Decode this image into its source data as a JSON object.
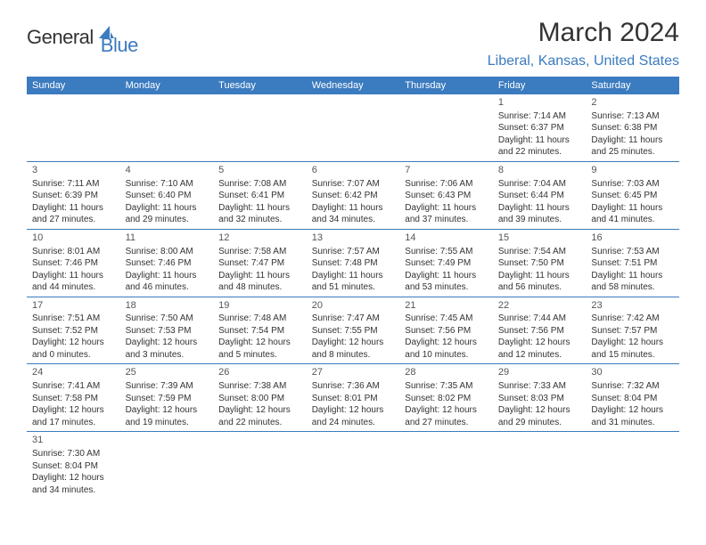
{
  "logo": {
    "text_general": "General",
    "text_blue": "Blue",
    "icon_color": "#3b7bbf"
  },
  "title": "March 2024",
  "location": "Liberal, Kansas, United States",
  "colors": {
    "header_bg": "#3b7bbf",
    "header_text": "#ffffff",
    "accent": "#3b7bbf",
    "body_text": "#333333",
    "background": "#ffffff"
  },
  "day_headers": [
    "Sunday",
    "Monday",
    "Tuesday",
    "Wednesday",
    "Thursday",
    "Friday",
    "Saturday"
  ],
  "weeks": [
    [
      null,
      null,
      null,
      null,
      null,
      {
        "n": "1",
        "sunrise": "Sunrise: 7:14 AM",
        "sunset": "Sunset: 6:37 PM",
        "daylight1": "Daylight: 11 hours",
        "daylight2": "and 22 minutes."
      },
      {
        "n": "2",
        "sunrise": "Sunrise: 7:13 AM",
        "sunset": "Sunset: 6:38 PM",
        "daylight1": "Daylight: 11 hours",
        "daylight2": "and 25 minutes."
      }
    ],
    [
      {
        "n": "3",
        "sunrise": "Sunrise: 7:11 AM",
        "sunset": "Sunset: 6:39 PM",
        "daylight1": "Daylight: 11 hours",
        "daylight2": "and 27 minutes."
      },
      {
        "n": "4",
        "sunrise": "Sunrise: 7:10 AM",
        "sunset": "Sunset: 6:40 PM",
        "daylight1": "Daylight: 11 hours",
        "daylight2": "and 29 minutes."
      },
      {
        "n": "5",
        "sunrise": "Sunrise: 7:08 AM",
        "sunset": "Sunset: 6:41 PM",
        "daylight1": "Daylight: 11 hours",
        "daylight2": "and 32 minutes."
      },
      {
        "n": "6",
        "sunrise": "Sunrise: 7:07 AM",
        "sunset": "Sunset: 6:42 PM",
        "daylight1": "Daylight: 11 hours",
        "daylight2": "and 34 minutes."
      },
      {
        "n": "7",
        "sunrise": "Sunrise: 7:06 AM",
        "sunset": "Sunset: 6:43 PM",
        "daylight1": "Daylight: 11 hours",
        "daylight2": "and 37 minutes."
      },
      {
        "n": "8",
        "sunrise": "Sunrise: 7:04 AM",
        "sunset": "Sunset: 6:44 PM",
        "daylight1": "Daylight: 11 hours",
        "daylight2": "and 39 minutes."
      },
      {
        "n": "9",
        "sunrise": "Sunrise: 7:03 AM",
        "sunset": "Sunset: 6:45 PM",
        "daylight1": "Daylight: 11 hours",
        "daylight2": "and 41 minutes."
      }
    ],
    [
      {
        "n": "10",
        "sunrise": "Sunrise: 8:01 AM",
        "sunset": "Sunset: 7:46 PM",
        "daylight1": "Daylight: 11 hours",
        "daylight2": "and 44 minutes."
      },
      {
        "n": "11",
        "sunrise": "Sunrise: 8:00 AM",
        "sunset": "Sunset: 7:46 PM",
        "daylight1": "Daylight: 11 hours",
        "daylight2": "and 46 minutes."
      },
      {
        "n": "12",
        "sunrise": "Sunrise: 7:58 AM",
        "sunset": "Sunset: 7:47 PM",
        "daylight1": "Daylight: 11 hours",
        "daylight2": "and 48 minutes."
      },
      {
        "n": "13",
        "sunrise": "Sunrise: 7:57 AM",
        "sunset": "Sunset: 7:48 PM",
        "daylight1": "Daylight: 11 hours",
        "daylight2": "and 51 minutes."
      },
      {
        "n": "14",
        "sunrise": "Sunrise: 7:55 AM",
        "sunset": "Sunset: 7:49 PM",
        "daylight1": "Daylight: 11 hours",
        "daylight2": "and 53 minutes."
      },
      {
        "n": "15",
        "sunrise": "Sunrise: 7:54 AM",
        "sunset": "Sunset: 7:50 PM",
        "daylight1": "Daylight: 11 hours",
        "daylight2": "and 56 minutes."
      },
      {
        "n": "16",
        "sunrise": "Sunrise: 7:53 AM",
        "sunset": "Sunset: 7:51 PM",
        "daylight1": "Daylight: 11 hours",
        "daylight2": "and 58 minutes."
      }
    ],
    [
      {
        "n": "17",
        "sunrise": "Sunrise: 7:51 AM",
        "sunset": "Sunset: 7:52 PM",
        "daylight1": "Daylight: 12 hours",
        "daylight2": "and 0 minutes."
      },
      {
        "n": "18",
        "sunrise": "Sunrise: 7:50 AM",
        "sunset": "Sunset: 7:53 PM",
        "daylight1": "Daylight: 12 hours",
        "daylight2": "and 3 minutes."
      },
      {
        "n": "19",
        "sunrise": "Sunrise: 7:48 AM",
        "sunset": "Sunset: 7:54 PM",
        "daylight1": "Daylight: 12 hours",
        "daylight2": "and 5 minutes."
      },
      {
        "n": "20",
        "sunrise": "Sunrise: 7:47 AM",
        "sunset": "Sunset: 7:55 PM",
        "daylight1": "Daylight: 12 hours",
        "daylight2": "and 8 minutes."
      },
      {
        "n": "21",
        "sunrise": "Sunrise: 7:45 AM",
        "sunset": "Sunset: 7:56 PM",
        "daylight1": "Daylight: 12 hours",
        "daylight2": "and 10 minutes."
      },
      {
        "n": "22",
        "sunrise": "Sunrise: 7:44 AM",
        "sunset": "Sunset: 7:56 PM",
        "daylight1": "Daylight: 12 hours",
        "daylight2": "and 12 minutes."
      },
      {
        "n": "23",
        "sunrise": "Sunrise: 7:42 AM",
        "sunset": "Sunset: 7:57 PM",
        "daylight1": "Daylight: 12 hours",
        "daylight2": "and 15 minutes."
      }
    ],
    [
      {
        "n": "24",
        "sunrise": "Sunrise: 7:41 AM",
        "sunset": "Sunset: 7:58 PM",
        "daylight1": "Daylight: 12 hours",
        "daylight2": "and 17 minutes."
      },
      {
        "n": "25",
        "sunrise": "Sunrise: 7:39 AM",
        "sunset": "Sunset: 7:59 PM",
        "daylight1": "Daylight: 12 hours",
        "daylight2": "and 19 minutes."
      },
      {
        "n": "26",
        "sunrise": "Sunrise: 7:38 AM",
        "sunset": "Sunset: 8:00 PM",
        "daylight1": "Daylight: 12 hours",
        "daylight2": "and 22 minutes."
      },
      {
        "n": "27",
        "sunrise": "Sunrise: 7:36 AM",
        "sunset": "Sunset: 8:01 PM",
        "daylight1": "Daylight: 12 hours",
        "daylight2": "and 24 minutes."
      },
      {
        "n": "28",
        "sunrise": "Sunrise: 7:35 AM",
        "sunset": "Sunset: 8:02 PM",
        "daylight1": "Daylight: 12 hours",
        "daylight2": "and 27 minutes."
      },
      {
        "n": "29",
        "sunrise": "Sunrise: 7:33 AM",
        "sunset": "Sunset: 8:03 PM",
        "daylight1": "Daylight: 12 hours",
        "daylight2": "and 29 minutes."
      },
      {
        "n": "30",
        "sunrise": "Sunrise: 7:32 AM",
        "sunset": "Sunset: 8:04 PM",
        "daylight1": "Daylight: 12 hours",
        "daylight2": "and 31 minutes."
      }
    ],
    [
      {
        "n": "31",
        "sunrise": "Sunrise: 7:30 AM",
        "sunset": "Sunset: 8:04 PM",
        "daylight1": "Daylight: 12 hours",
        "daylight2": "and 34 minutes."
      },
      null,
      null,
      null,
      null,
      null,
      null
    ]
  ]
}
